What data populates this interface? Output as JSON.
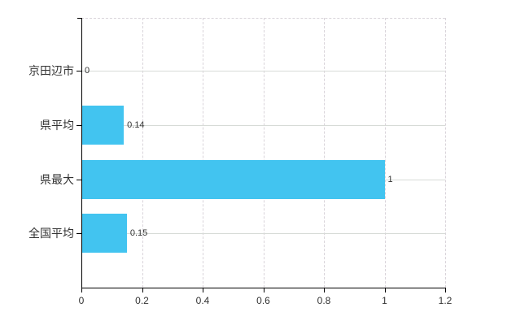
{
  "chart_data": {
    "type": "bar",
    "orientation": "horizontal",
    "title": "",
    "xlabel": "",
    "ylabel": "",
    "categories": [
      "京田辺市",
      "県平均",
      "県最大",
      "全国平均"
    ],
    "values": [
      0,
      0.14,
      1,
      0.15
    ],
    "value_labels": [
      "0",
      "0.14",
      "1",
      "0.15"
    ],
    "x_ticks": [
      0,
      0.2,
      0.4,
      0.6,
      0.8,
      1,
      1.2
    ],
    "x_tick_labels": [
      "0",
      "0.2",
      "0.4",
      "0.6",
      "0.8",
      "1",
      "1.2"
    ],
    "xlim": [
      0,
      1.2
    ],
    "grid": "vertical dashed gridlines at each x tick, solid horizontal line at each category center, dashed line at plot top",
    "legend_position": "none",
    "colors": {
      "bar": "#42c4f0",
      "axis": "#000000",
      "text": "#333333",
      "gridline_vertical": "#d9d4da",
      "gridline_horizontal": "#d7dbd7"
    }
  }
}
